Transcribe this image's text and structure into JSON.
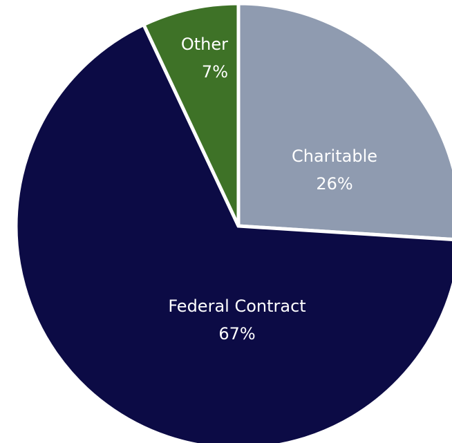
{
  "chart_data": {
    "type": "pie",
    "slices": [
      {
        "name": "Charitable",
        "value": 26,
        "value_label": "26%",
        "color": "#8f9bb0"
      },
      {
        "name": "Federal Contract",
        "value": 67,
        "value_label": "67%",
        "color": "#0c0b45"
      },
      {
        "name": "Other",
        "value": 7,
        "value_label": "7%",
        "color": "#3e7227"
      }
    ],
    "start": "12 o'clock",
    "direction": "clockwise",
    "legend": "none",
    "title": ""
  }
}
